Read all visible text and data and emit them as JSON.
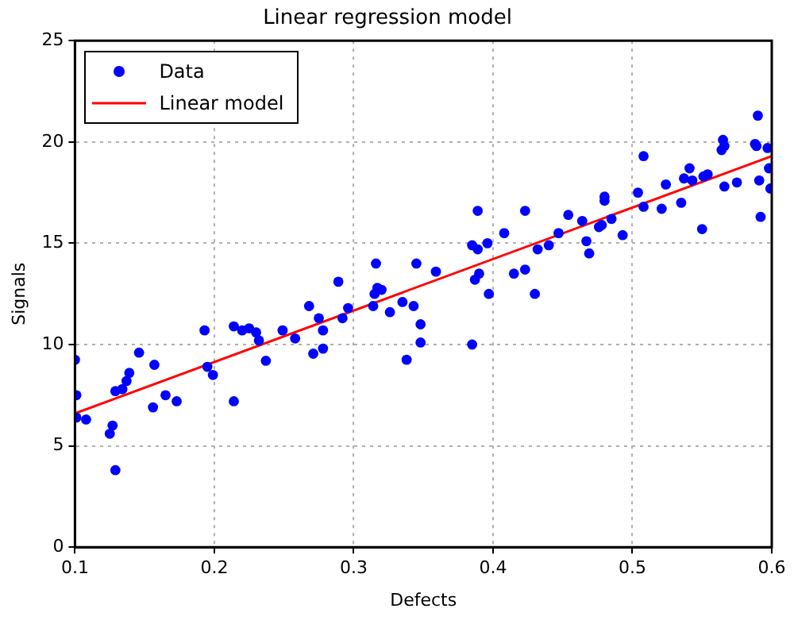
{
  "chart_data": {
    "type": "scatter",
    "title": "Linear regression model",
    "xlabel": "Defects",
    "ylabel": "Signals",
    "xlim": [
      0.1,
      0.6
    ],
    "xticks": [
      0.1,
      0.2,
      0.3,
      0.4,
      0.5,
      0.6
    ],
    "ylim": [
      0,
      25
    ],
    "yticks": [
      0,
      5,
      10,
      15,
      20,
      25
    ],
    "grid": true,
    "legend": "top left",
    "series": [
      {
        "name": "Data",
        "type": "scatter",
        "color": "#0000ff",
        "marker": "circle",
        "x": [
          0.1,
          0.101,
          0.101,
          0.108,
          0.125,
          0.127,
          0.129,
          0.129,
          0.134,
          0.137,
          0.139,
          0.146,
          0.156,
          0.157,
          0.165,
          0.173,
          0.193,
          0.195,
          0.199,
          0.214,
          0.214,
          0.22,
          0.225,
          0.23,
          0.232,
          0.237,
          0.249,
          0.258,
          0.268,
          0.271,
          0.275,
          0.278,
          0.278,
          0.289,
          0.292,
          0.296,
          0.314,
          0.316,
          0.317,
          0.32,
          0.315,
          0.326,
          0.335,
          0.338,
          0.343,
          0.345,
          0.348,
          0.348,
          0.359,
          0.385,
          0.385,
          0.387,
          0.389,
          0.389,
          0.39,
          0.396,
          0.397,
          0.408,
          0.415,
          0.423,
          0.423,
          0.43,
          0.432,
          0.44,
          0.447,
          0.454,
          0.464,
          0.467,
          0.469,
          0.476,
          0.478,
          0.48,
          0.48,
          0.485,
          0.493,
          0.504,
          0.508,
          0.508,
          0.521,
          0.524,
          0.535,
          0.537,
          0.541,
          0.543,
          0.55,
          0.551,
          0.554,
          0.564,
          0.565,
          0.566,
          0.566,
          0.575,
          0.588,
          0.589,
          0.59,
          0.591,
          0.592,
          0.597,
          0.598,
          0.599
        ],
        "values": [
          9.25,
          7.5,
          6.4,
          6.3,
          5.6,
          6.0,
          3.8,
          7.7,
          7.8,
          8.2,
          8.6,
          9.6,
          6.9,
          9.0,
          7.5,
          7.2,
          10.7,
          8.9,
          8.5,
          10.9,
          7.2,
          10.7,
          10.8,
          10.6,
          10.2,
          9.2,
          10.7,
          10.3,
          11.9,
          9.55,
          11.3,
          10.7,
          9.8,
          13.1,
          11.3,
          11.8,
          11.9,
          14.0,
          12.8,
          12.7,
          12.5,
          11.6,
          12.1,
          9.25,
          11.9,
          14.0,
          11.0,
          10.1,
          13.6,
          10.0,
          14.9,
          13.2,
          14.7,
          16.6,
          13.5,
          15.0,
          12.5,
          15.5,
          13.5,
          13.7,
          16.6,
          12.5,
          14.7,
          14.9,
          15.5,
          16.4,
          16.1,
          15.1,
          14.5,
          15.8,
          15.9,
          17.1,
          17.3,
          16.2,
          15.4,
          17.5,
          19.3,
          16.8,
          16.7,
          17.9,
          17.0,
          18.2,
          18.7,
          18.1,
          15.7,
          18.3,
          18.4,
          19.6,
          20.1,
          19.8,
          17.8,
          18.0,
          19.9,
          19.8,
          21.3,
          18.1,
          16.3,
          19.7,
          18.7,
          17.7
        ]
      },
      {
        "name": "Linear model",
        "type": "line",
        "color": "#ff0000",
        "marker": "none",
        "line_style": "solid",
        "x": [
          0.1,
          0.6
        ],
        "values": [
          6.6,
          19.3
        ]
      }
    ]
  }
}
